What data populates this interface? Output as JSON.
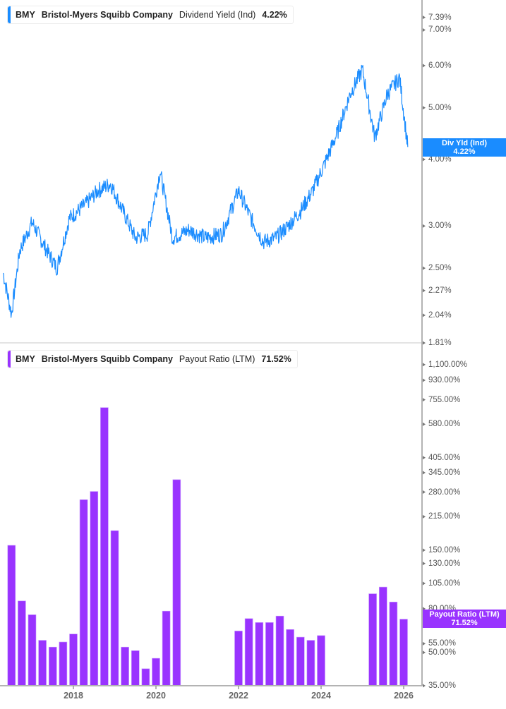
{
  "top_panel": {
    "legend": {
      "ticker": "BMY",
      "company": "Bristol-Myers Squibb Company",
      "metric": "Dividend Yield (Ind)",
      "value": "4.22%",
      "color": "#1a8cff"
    },
    "flag": {
      "label": "Div Yld (Ind)",
      "value": "4.22%",
      "color": "#1a8cff"
    },
    "y_ticks": [
      "7.39%",
      "7.00%",
      "6.00%",
      "5.00%",
      "4.00%",
      "3.00%",
      "2.50%",
      "2.27%",
      "2.04%",
      "1.81%"
    ]
  },
  "bottom_panel": {
    "legend": {
      "ticker": "BMY",
      "company": "Bristol-Myers Squibb Company",
      "metric": "Payout Ratio (LTM)",
      "value": "71.52%",
      "color": "#9933ff"
    },
    "flag": {
      "label": "Payout Ratio (LTM)",
      "value": "71.52%",
      "color": "#9933ff"
    },
    "y_ticks": [
      "1,100.00%",
      "930.00%",
      "755.00%",
      "580.00%",
      "405.00%",
      "345.00%",
      "280.00%",
      "215.00%",
      "150.00%",
      "130.00%",
      "105.00%",
      "80.00%",
      "55.00%",
      "50.00%",
      "35.00%"
    ]
  },
  "x_axis": {
    "ticks": [
      "2018",
      "2020",
      "2022",
      "2024",
      "2026"
    ]
  },
  "chart_data": [
    {
      "type": "line",
      "title": "BMY Bristol-Myers Squibb Company Dividend Yield (Ind) 4.22%",
      "ylabel": "Dividend Yield (Ind)",
      "yscale": "log",
      "ylim": [
        1.81,
        7.39
      ],
      "y_ticks": [
        7.39,
        7.0,
        6.0,
        5.0,
        4.0,
        3.0,
        2.5,
        2.27,
        2.04,
        1.81
      ],
      "x": [
        "2016.3",
        "2016.5",
        "2016.7",
        "2017.0",
        "2017.3",
        "2017.6",
        "2017.9",
        "2018.3",
        "2018.6",
        "2018.9",
        "2019.2",
        "2019.5",
        "2019.8",
        "2020.1",
        "2020.4",
        "2020.8",
        "2021.2",
        "2021.6",
        "2022.0",
        "2022.3",
        "2022.6",
        "2022.9",
        "2023.2",
        "2023.5",
        "2023.8",
        "2024.1",
        "2024.4",
        "2024.7",
        "2025.0",
        "2025.3",
        "2025.6",
        "2025.9",
        "2026.1"
      ],
      "series": [
        {
          "name": "Div Yld (Ind)",
          "color": "#1a8cff",
          "values": [
            2.45,
            2.05,
            2.7,
            3.05,
            2.75,
            2.5,
            3.1,
            3.3,
            3.5,
            3.6,
            3.2,
            2.85,
            2.9,
            3.8,
            2.85,
            2.95,
            2.85,
            2.9,
            3.5,
            3.1,
            2.8,
            2.85,
            3.0,
            3.2,
            3.5,
            3.95,
            4.5,
            5.3,
            5.9,
            4.4,
            5.3,
            5.7,
            4.22
          ]
        }
      ],
      "last_value": 4.22
    },
    {
      "type": "bar",
      "title": "BMY Bristol-Myers Squibb Company Payout Ratio (LTM) 71.52%",
      "ylabel": "Payout Ratio (LTM)",
      "yscale": "log",
      "ylim": [
        35,
        1100
      ],
      "y_ticks": [
        1100,
        930,
        755,
        580,
        405,
        345,
        280,
        215,
        150,
        130,
        105,
        80,
        55,
        50,
        35
      ],
      "categories": [
        "2016 Q3",
        "2016 Q4",
        "2017 Q1",
        "2017 Q2",
        "2017 Q3",
        "2017 Q4",
        "2018 Q1",
        "2018 Q2",
        "2018 Q3",
        "2018 Q4",
        "2019 Q1",
        "2019 Q2",
        "2019 Q3",
        "2019 Q4",
        "2020 Q1",
        "2020 Q2",
        "2020 Q3",
        "2022 Q1",
        "2022 Q2",
        "2022 Q3",
        "2022 Q4",
        "2023 Q1",
        "2023 Q2",
        "2023 Q3",
        "2023 Q4",
        "2024 Q1",
        "2025 Q2",
        "2025 Q3",
        "2025 Q4",
        "2026 Q1"
      ],
      "series": [
        {
          "name": "Payout Ratio (LTM)",
          "color": "#9933ff",
          "values": [
            158,
            87,
            75,
            57,
            53,
            56,
            61,
            258,
            282,
            694,
            185,
            53,
            51,
            42,
            47,
            78,
            320,
            63,
            72,
            69,
            69,
            74,
            64,
            59,
            57,
            60,
            94,
            101,
            86,
            71.52
          ]
        }
      ],
      "last_value": 71.52
    }
  ]
}
